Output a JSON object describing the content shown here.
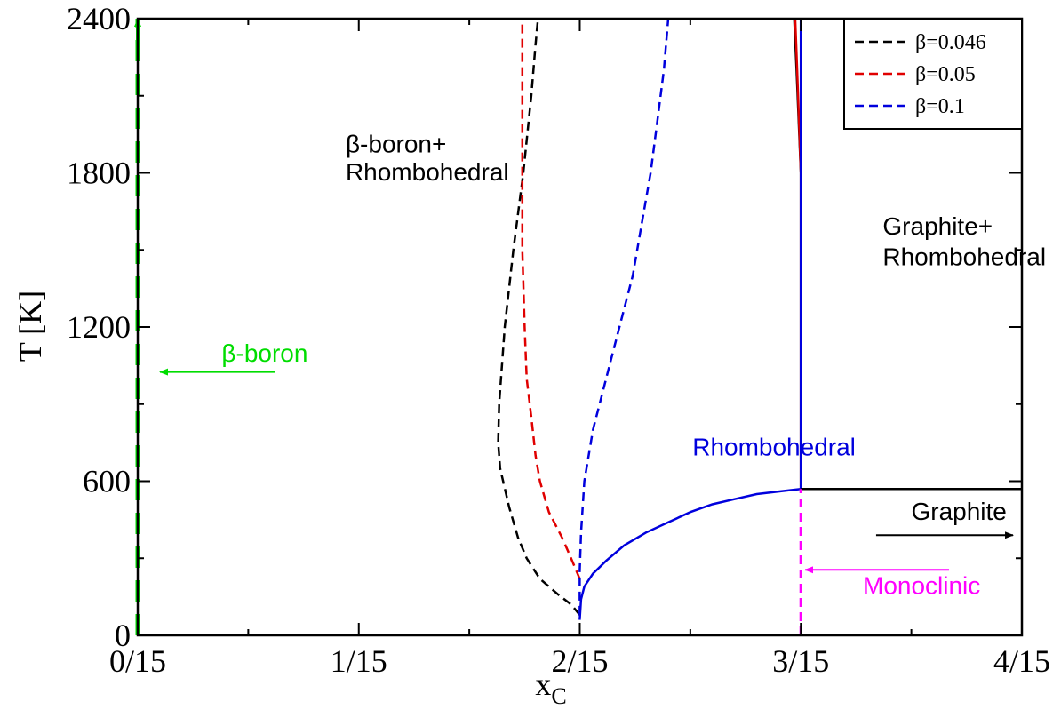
{
  "chart_data": {
    "type": "line",
    "title": "",
    "xlabel": "x",
    "xlabel_sub": "C",
    "ylabel": "T [K]",
    "xlim": [
      0,
      0.26667
    ],
    "ylim": [
      0,
      2400
    ],
    "xticks": [
      {
        "v": 0,
        "label": "0/15"
      },
      {
        "v": 0.06667,
        "label": "1/15"
      },
      {
        "v": 0.13333,
        "label": "2/15"
      },
      {
        "v": 0.2,
        "label": "3/15"
      },
      {
        "v": 0.26667,
        "label": "4/15"
      }
    ],
    "yticks": [
      {
        "v": 0,
        "label": "0"
      },
      {
        "v": 600,
        "label": "600"
      },
      {
        "v": 1200,
        "label": "1200"
      },
      {
        "v": 1800,
        "label": "1800"
      },
      {
        "v": 2400,
        "label": "2400"
      }
    ],
    "grid": false,
    "legend": {
      "position": "top-right",
      "entries": [
        {
          "label": "β=0.046",
          "color": "#000000"
        },
        {
          "label": "β=0.05",
          "color": "#e00000"
        },
        {
          "label": "β=0.1",
          "color": "#0000dd"
        }
      ]
    },
    "series": [
      {
        "name": "β=0.046",
        "color": "#000000",
        "dash": "dashed",
        "points": [
          [
            0.1333,
            80
          ],
          [
            0.1307,
            120
          ],
          [
            0.1267,
            160
          ],
          [
            0.1213,
            220
          ],
          [
            0.1173,
            300
          ],
          [
            0.1147,
            380
          ],
          [
            0.112,
            500
          ],
          [
            0.1093,
            650
          ],
          [
            0.1087,
            750
          ],
          [
            0.109,
            900
          ],
          [
            0.1107,
            1200
          ],
          [
            0.1133,
            1500
          ],
          [
            0.1163,
            1800
          ],
          [
            0.1187,
            2100
          ],
          [
            0.12,
            2300
          ],
          [
            0.1207,
            2400
          ]
        ]
      },
      {
        "name": "β=0.05",
        "color": "#e00000",
        "dash": "dashed",
        "points": [
          [
            0.1333,
            220
          ],
          [
            0.1307,
            300
          ],
          [
            0.128,
            380
          ],
          [
            0.124,
            480
          ],
          [
            0.1213,
            600
          ],
          [
            0.12,
            700
          ],
          [
            0.1187,
            850
          ],
          [
            0.1173,
            1000
          ],
          [
            0.1167,
            1200
          ],
          [
            0.116,
            1500
          ],
          [
            0.116,
            1800
          ],
          [
            0.116,
            2100
          ],
          [
            0.116,
            2300
          ],
          [
            0.116,
            2400
          ]
        ]
      },
      {
        "name": "β=0.1",
        "color": "#0000dd",
        "dash": "dashed",
        "points": [
          [
            0.1333,
            80
          ],
          [
            0.1333,
            250
          ],
          [
            0.1337,
            400
          ],
          [
            0.1347,
            600
          ],
          [
            0.1373,
            800
          ],
          [
            0.1413,
            1000
          ],
          [
            0.1453,
            1200
          ],
          [
            0.1493,
            1400
          ],
          [
            0.152,
            1600
          ],
          [
            0.1547,
            1800
          ],
          [
            0.1567,
            2000
          ],
          [
            0.1587,
            2200
          ],
          [
            0.16,
            2400
          ]
        ]
      },
      {
        "name": "β=0.1 boundary",
        "color": "#0000dd",
        "dash": "solid",
        "points": [
          [
            0.1333,
            60
          ],
          [
            0.1337,
            140
          ],
          [
            0.1347,
            190
          ],
          [
            0.1373,
            240
          ],
          [
            0.1413,
            290
          ],
          [
            0.1467,
            350
          ],
          [
            0.1533,
            400
          ],
          [
            0.16,
            440
          ],
          [
            0.1667,
            480
          ],
          [
            0.1733,
            510
          ],
          [
            0.18,
            530
          ],
          [
            0.1867,
            550
          ],
          [
            0.1933,
            560
          ],
          [
            0.2,
            570
          ]
        ]
      },
      {
        "name": "graphite boundary black",
        "color": "#000000",
        "dash": "solid",
        "points": [
          [
            0.2,
            570
          ],
          [
            0.2,
            1800
          ],
          [
            0.1987,
            2200
          ],
          [
            0.198,
            2400
          ]
        ]
      },
      {
        "name": "graphite boundary red",
        "color": "#e00000",
        "dash": "solid",
        "points": [
          [
            0.2,
            570
          ],
          [
            0.2,
            1800
          ],
          [
            0.1989,
            2200
          ],
          [
            0.1983,
            2400
          ]
        ]
      },
      {
        "name": "graphite boundary blue",
        "color": "#0000dd",
        "dash": "solid",
        "points": [
          [
            0.2,
            570
          ],
          [
            0.2,
            2400
          ]
        ]
      },
      {
        "name": "graphite horizontal",
        "color": "#000000",
        "dash": "solid",
        "points": [
          [
            0.2,
            570
          ],
          [
            0.26667,
            570
          ]
        ]
      },
      {
        "name": "monoclinic line",
        "color": "#ff00ff",
        "dash": "dashed",
        "points": [
          [
            0.2,
            0
          ],
          [
            0.2,
            570
          ]
        ]
      },
      {
        "name": "beta-boron line",
        "color": "#00dd00",
        "dash": "dashed",
        "points": [
          [
            0.0,
            0
          ],
          [
            0.0,
            2400
          ]
        ]
      }
    ],
    "annotations": [
      {
        "text": "β-boron+",
        "color": "#000000",
        "x": 0.0627,
        "y": 1880
      },
      {
        "text": "Rhombohedral",
        "color": "#000000",
        "x": 0.0627,
        "y": 1770
      },
      {
        "text": "β-boron",
        "color": "#00dd00",
        "x": 0.0253,
        "y": 1065
      },
      {
        "text": "Rhombohedral",
        "color": "#0000dd",
        "x": 0.1673,
        "y": 700
      },
      {
        "text": "Graphite+",
        "color": "#000000",
        "x": 0.2247,
        "y": 1560
      },
      {
        "text": "Rhombohedral",
        "color": "#000000",
        "x": 0.2247,
        "y": 1440
      },
      {
        "text": "Graphite",
        "color": "#000000",
        "x": 0.2333,
        "y": 450
      },
      {
        "text": "Monoclinic",
        "color": "#ff00ff",
        "x": 0.2187,
        "y": 160
      }
    ],
    "arrows": [
      {
        "color": "#00dd00",
        "from": [
          0.0413,
          1025
        ],
        "to": [
          0.0067,
          1025
        ]
      },
      {
        "color": "#000000",
        "from": [
          0.2227,
          390
        ],
        "to": [
          0.264,
          390
        ]
      },
      {
        "color": "#ff00ff",
        "from": [
          0.2447,
          255
        ],
        "to": [
          0.2013,
          255
        ]
      },
      {
        "color": "#00dd00",
        "from": [
          0.0,
          2300
        ],
        "to": [
          0.0,
          2400
        ]
      }
    ]
  }
}
